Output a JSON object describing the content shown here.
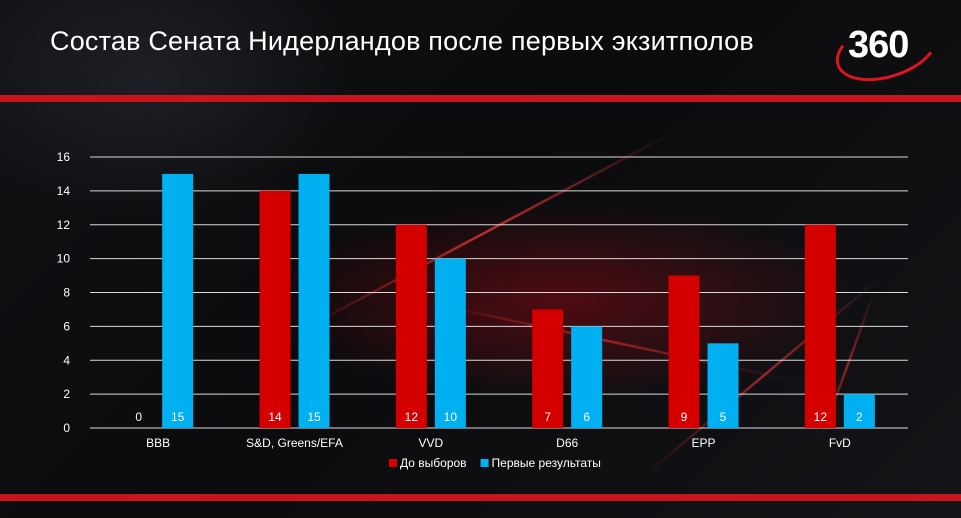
{
  "header": {
    "title": "Состав Сената Нидерландов после первых экзитполов",
    "logo_text": "360"
  },
  "colors": {
    "before": "#d40000",
    "after": "#00b0f0",
    "accent_bar": "#c8141c",
    "text": "#ffffff",
    "grid": "#d9d9d9"
  },
  "chart_data": {
    "type": "bar",
    "title": "",
    "xlabel": "",
    "ylabel": "",
    "categories": [
      "BBB",
      "S&D, Greens/EFA",
      "VVD",
      "D66",
      "EPP",
      "FvD"
    ],
    "series": [
      {
        "name": "До выборов",
        "values": [
          0,
          14,
          12,
          7,
          9,
          12
        ]
      },
      {
        "name": "Первые результаты",
        "values": [
          15,
          15,
          10,
          6,
          5,
          2
        ]
      }
    ],
    "ylim": [
      0,
      16
    ],
    "yticks": [
      0,
      2,
      4,
      6,
      8,
      10,
      12,
      14,
      16
    ],
    "grid": true,
    "legend_position": "bottom"
  }
}
